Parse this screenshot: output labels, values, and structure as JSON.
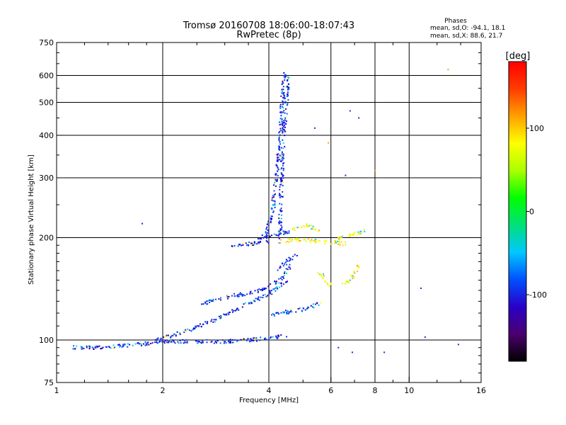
{
  "chart_data": {
    "type": "scatter",
    "title": "Tromsø 20160708 18:06:00-18:07:43",
    "subtitle": "RwPretec (8p)",
    "xlabel": "Frequency [MHz]",
    "ylabel": "Stationary phase Virtual Height [km]",
    "xscale": "log",
    "yscale": "log",
    "xlim": [
      1,
      16
    ],
    "ylim": [
      75,
      750
    ],
    "xticks": [
      1,
      2,
      4,
      6,
      8,
      10,
      16
    ],
    "yticks": [
      75,
      100,
      200,
      300,
      400,
      500,
      600,
      750
    ],
    "grid": true,
    "stats": {
      "heading": "Phases",
      "line_o": "mean, sd,O: -94.1, 18.1",
      "line_x": "mean, sd,X: 88.6, 21.7"
    },
    "colorbar": {
      "label": "[deg]",
      "range": [
        -180,
        180
      ],
      "ticks": [
        -100,
        0,
        100
      ],
      "colors": [
        "#000000",
        "#4b006e",
        "#2a00c8",
        "#0050ff",
        "#00c8ff",
        "#00e07a",
        "#00ff00",
        "#aaff00",
        "#ffff00",
        "#ffa000",
        "#ff3c00",
        "#ff0000"
      ]
    },
    "series": [
      {
        "color_group": "blue (-100 deg)",
        "segments": [
          [
            [
              1.1,
              95
            ],
            [
              1.3,
              95
            ],
            [
              1.5,
              96
            ],
            [
              1.7,
              97
            ],
            [
              1.9,
              98
            ],
            [
              2.1,
              99
            ],
            [
              2.5,
              99
            ],
            [
              3.0,
              99
            ],
            [
              3.5,
              100
            ],
            [
              4.0,
              101
            ],
            [
              4.5,
              103
            ]
          ],
          [
            [
              1.9,
              100
            ],
            [
              2.2,
              104
            ],
            [
              2.6,
              111
            ],
            [
              3.1,
              120
            ],
            [
              3.6,
              130
            ],
            [
              4.0,
              137
            ],
            [
              4.3,
              143
            ],
            [
              4.5,
              150
            ]
          ],
          [
            [
              2.6,
              128
            ],
            [
              3.2,
              135
            ],
            [
              3.8,
              140
            ],
            [
              4.3,
              150
            ],
            [
              4.6,
              165
            ]
          ],
          [
            [
              3.9,
              200
            ],
            [
              4.1,
              240
            ],
            [
              4.2,
              300
            ],
            [
              4.3,
              380
            ],
            [
              4.35,
              470
            ],
            [
              4.4,
              560
            ],
            [
              4.45,
              620
            ]
          ],
          [
            [
              4.3,
              200
            ],
            [
              4.35,
              300
            ],
            [
              4.4,
              400
            ],
            [
              4.5,
              520
            ],
            [
              4.55,
              600
            ]
          ],
          [
            [
              3.7,
              200
            ],
            [
              4.0,
              202
            ],
            [
              4.3,
              205
            ],
            [
              4.6,
              210
            ]
          ],
          [
            [
              3.1,
              190
            ],
            [
              3.6,
              192
            ],
            [
              4.0,
              195
            ]
          ],
          [
            [
              4.0,
              118
            ],
            [
              4.5,
              121
            ],
            [
              5.0,
              123
            ],
            [
              5.6,
              128
            ]
          ],
          [
            [
              4.2,
              160
            ],
            [
              4.5,
              170
            ],
            [
              4.8,
              180
            ]
          ]
        ]
      },
      {
        "color_group": "yellow (100 deg)",
        "segments": [
          [
            [
              4.3,
              195
            ],
            [
              4.8,
              197
            ],
            [
              5.3,
              196
            ],
            [
              5.8,
              194
            ],
            [
              6.3,
              193
            ],
            [
              6.6,
              192
            ]
          ],
          [
            [
              4.7,
              212
            ],
            [
              5.0,
              218
            ],
            [
              5.3,
              214
            ],
            [
              5.6,
              208
            ]
          ],
          [
            [
              6.5,
              145
            ],
            [
              6.8,
              150
            ],
            [
              7.0,
              157
            ],
            [
              7.2,
              165
            ]
          ],
          [
            [
              5.5,
              160
            ],
            [
              5.8,
              150
            ],
            [
              6.0,
              145
            ]
          ],
          [
            [
              6.3,
              200
            ],
            [
              7.0,
              205
            ],
            [
              7.6,
              210
            ]
          ]
        ]
      },
      {
        "color_group": "scattered",
        "points": [
          [
            1.75,
            220
          ],
          [
            12.9,
            625
          ],
          [
            6.8,
            472
          ],
          [
            8.0,
            315
          ],
          [
            10.8,
            142
          ],
          [
            13.8,
            97
          ],
          [
            11.1,
            102
          ],
          [
            8.5,
            92
          ],
          [
            6.3,
            95
          ],
          [
            6.9,
            92
          ],
          [
            7.2,
            450
          ],
          [
            5.9,
            380
          ],
          [
            5.4,
            420
          ],
          [
            6.6,
            305
          ]
        ]
      }
    ]
  }
}
